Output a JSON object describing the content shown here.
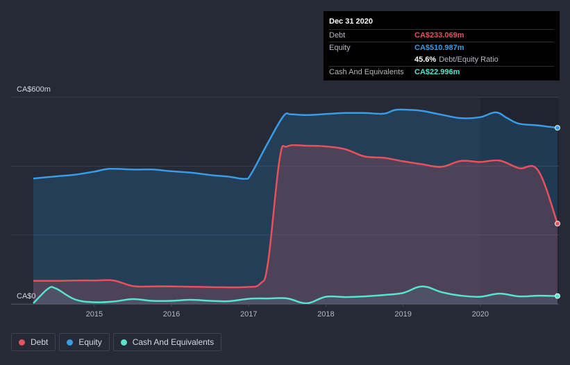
{
  "tooltip": {
    "title": "Dec 31 2020",
    "rows": [
      {
        "label": "Debt",
        "value": "CA$233.069m",
        "color": "#e5525b"
      },
      {
        "label": "Equity",
        "value": "CA$510.987m",
        "color": "#3a9be6"
      }
    ],
    "ratio_value": "45.6%",
    "ratio_label": "Debt/Equity Ratio",
    "cash": {
      "label": "Cash And Equivalents",
      "value": "CA$22.996m",
      "color": "#57e3cf"
    }
  },
  "legend": [
    {
      "label": "Debt",
      "color": "#e5525b"
    },
    {
      "label": "Equity",
      "color": "#3a9be6"
    },
    {
      "label": "Cash And Equivalents",
      "color": "#57e3cf"
    }
  ],
  "chart_data": {
    "type": "area",
    "ylim": [
      0,
      600
    ],
    "xlim": [
      2014.21,
      2021.0
    ],
    "y_tick_labels": [
      "CA$600m",
      "CA$0"
    ],
    "x_tick_labels": [
      "2015",
      "2016",
      "2017",
      "2018",
      "2019",
      "2020"
    ],
    "grid": true,
    "legend_position": "bottom-left",
    "series": [
      {
        "name": "Equity",
        "color": "#3a9be6",
        "x": [
          2014.21,
          2014.5,
          2014.75,
          2015.0,
          2015.2,
          2015.5,
          2015.75,
          2016.0,
          2016.25,
          2016.5,
          2016.75,
          2016.95,
          2017.03,
          2017.25,
          2017.45,
          2017.55,
          2017.75,
          2018.0,
          2018.25,
          2018.5,
          2018.75,
          2018.9,
          2019.1,
          2019.25,
          2019.5,
          2019.75,
          2020.0,
          2020.2,
          2020.35,
          2020.5,
          2020.75,
          2021.0
        ],
        "values": [
          364,
          370,
          375,
          384,
          392,
          390,
          390,
          385,
          381,
          374,
          369,
          363,
          377,
          468,
          545,
          550,
          548,
          551,
          554,
          554,
          552,
          563,
          563,
          560,
          549,
          539,
          542,
          556,
          539,
          523,
          518,
          511
        ]
      },
      {
        "name": "Debt",
        "color": "#e5525b",
        "x": [
          2014.21,
          2014.5,
          2014.75,
          2015.0,
          2015.25,
          2015.5,
          2015.75,
          2016.0,
          2016.5,
          2016.95,
          2017.15,
          2017.25,
          2017.4,
          2017.5,
          2017.75,
          2018.0,
          2018.25,
          2018.5,
          2018.75,
          2019.0,
          2019.25,
          2019.5,
          2019.75,
          2020.0,
          2020.25,
          2020.5,
          2020.75,
          2021.0
        ],
        "values": [
          67,
          67,
          68,
          68,
          68,
          52,
          51,
          51,
          49,
          49,
          59,
          120,
          420,
          457,
          459,
          457,
          449,
          428,
          424,
          414,
          405,
          398,
          415,
          412,
          416,
          394,
          387,
          233
        ]
      },
      {
        "name": "Cash And Equivalents",
        "color": "#57e3cf",
        "x": [
          2014.21,
          2014.4,
          2014.5,
          2014.75,
          2015.0,
          2015.25,
          2015.5,
          2015.75,
          2016.0,
          2016.25,
          2016.5,
          2016.75,
          2017.0,
          2017.25,
          2017.5,
          2017.75,
          2018.0,
          2018.25,
          2018.5,
          2018.75,
          2019.0,
          2019.25,
          2019.5,
          2019.75,
          2020.0,
          2020.25,
          2020.5,
          2020.75,
          2021.0
        ],
        "values": [
          2,
          44,
          45,
          13,
          5,
          7,
          14,
          9,
          9,
          12,
          9,
          8,
          15,
          16,
          16,
          2,
          21,
          20,
          22,
          26,
          32,
          51,
          34,
          24,
          21,
          30,
          22,
          24,
          23
        ]
      }
    ]
  }
}
